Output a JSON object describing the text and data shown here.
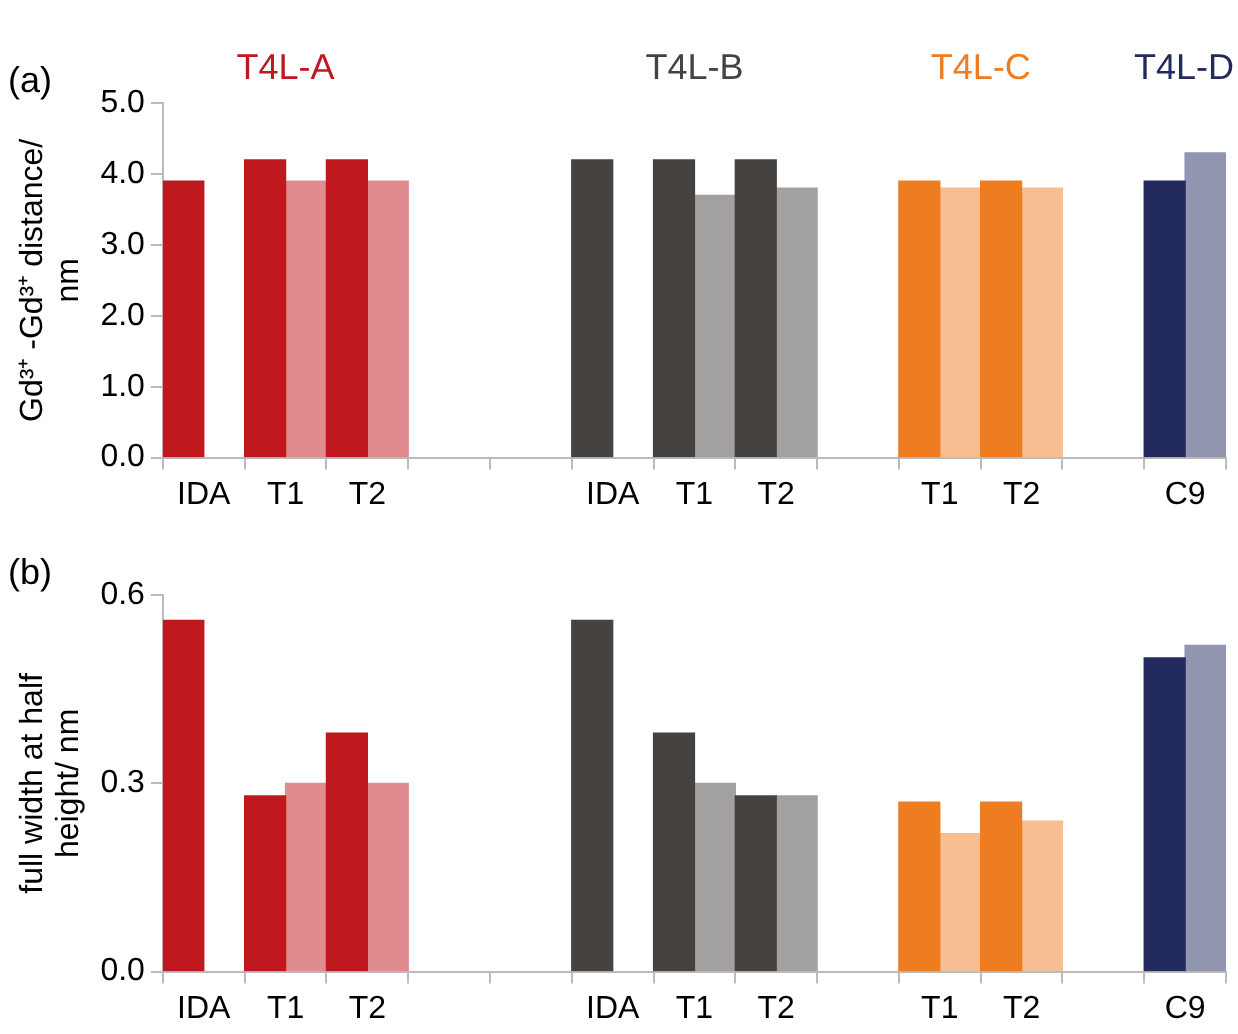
{
  "chart_data": [
    {
      "type": "bar",
      "title": "(a)",
      "ylabel": "Gd³⁺ -Gd³⁺ distance/ nm",
      "categories": [
        "IDA",
        "T1",
        "T2",
        null,
        null,
        "IDA",
        "T1",
        "T2",
        null,
        "T1",
        "T2",
        null,
        "C9"
      ],
      "series": [
        {
          "colors": [
            "#c0181f",
            "#c0181f",
            "#c0181f",
            null,
            null,
            "#464240",
            "#464240",
            "#464240",
            null,
            "#ee7d22",
            "#ee7d22",
            null,
            "#232a5e"
          ],
          "values": [
            3.9,
            4.2,
            4.2,
            null,
            null,
            4.2,
            4.2,
            4.2,
            null,
            3.9,
            3.9,
            null,
            3.9
          ]
        },
        {
          "colors": [
            null,
            "#e08c8f",
            "#e08c8f",
            null,
            null,
            null,
            "#a3a1a0",
            "#a3a1a0",
            null,
            "#f7be91",
            "#f7be91",
            null,
            "#9195af"
          ],
          "values": [
            null,
            3.9,
            3.9,
            null,
            null,
            null,
            3.7,
            3.8,
            null,
            3.8,
            3.8,
            null,
            4.3
          ]
        }
      ],
      "ylim": [
        0,
        5
      ],
      "yticks": [
        {
          "value": 0,
          "label": "0.0"
        },
        {
          "value": 1,
          "label": "1.0"
        },
        {
          "value": 2,
          "label": "2.0"
        },
        {
          "value": 3,
          "label": "3.0"
        },
        {
          "value": 4,
          "label": "4.0"
        },
        {
          "value": 5,
          "label": "5.0"
        }
      ],
      "grid": false,
      "legend": false,
      "annotations": [
        "T4L-A",
        "T4L-B",
        "T4L-C",
        "T4L-D"
      ]
    },
    {
      "type": "bar",
      "title": "(b)",
      "ylabel": "full width at half height/ nm",
      "categories": [
        "IDA",
        "T1",
        "T2",
        null,
        null,
        "IDA",
        "T1",
        "T2",
        null,
        "T1",
        "T2",
        null,
        "C9"
      ],
      "series": [
        {
          "colors": [
            "#c0181f",
            "#c0181f",
            "#c0181f",
            null,
            null,
            "#464240",
            "#464240",
            "#464240",
            null,
            "#ee7d22",
            "#ee7d22",
            null,
            "#232a5e"
          ],
          "values": [
            0.56,
            0.28,
            0.38,
            null,
            null,
            0.56,
            0.38,
            0.28,
            null,
            0.27,
            0.27,
            null,
            0.5
          ]
        },
        {
          "colors": [
            null,
            "#e08c8f",
            "#e08c8f",
            null,
            null,
            null,
            "#a3a1a0",
            "#a3a1a0",
            null,
            "#f7be91",
            "#f7be91",
            null,
            "#9195af"
          ],
          "values": [
            null,
            0.3,
            0.3,
            null,
            null,
            null,
            0.3,
            0.28,
            null,
            0.22,
            0.24,
            null,
            0.52
          ]
        }
      ],
      "ylim": [
        0,
        0.6
      ],
      "yticks": [
        {
          "value": 0,
          "label": "0.0"
        },
        {
          "value": 0.3,
          "label": "0.3"
        },
        {
          "value": 0.6,
          "label": "0.6"
        }
      ],
      "grid": false,
      "legend": false
    }
  ]
}
